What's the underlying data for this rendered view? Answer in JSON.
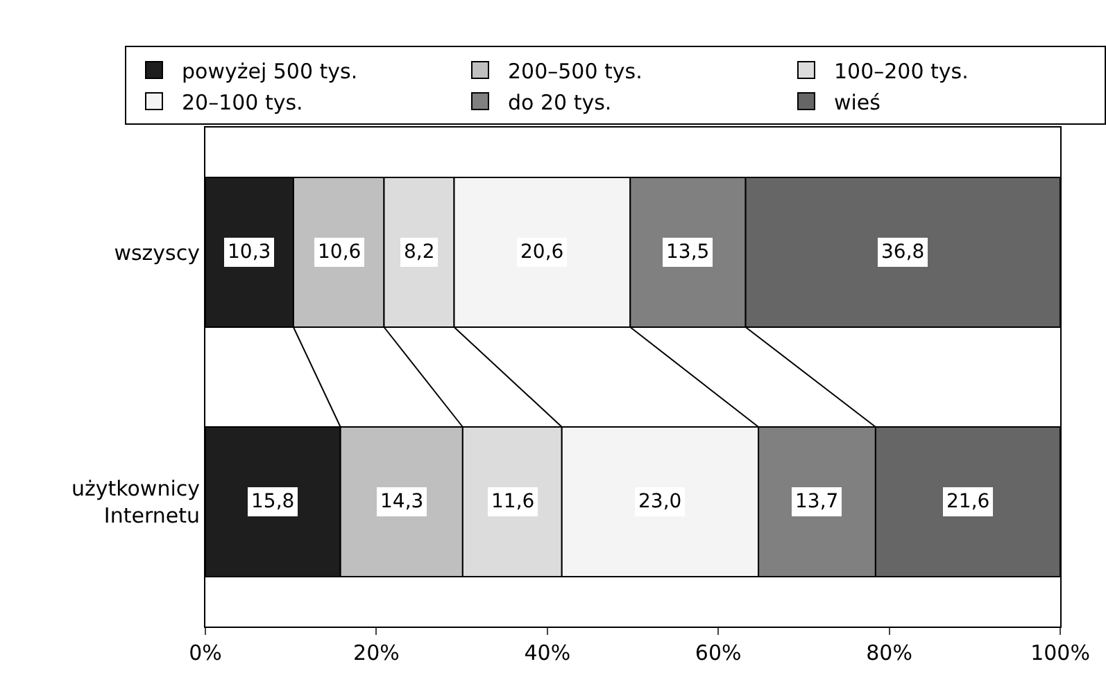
{
  "chart_data": {
    "type": "bar",
    "orientation": "horizontal",
    "stacked": true,
    "categories": [
      "wszyscy",
      "użytkownicy\nInternetu"
    ],
    "series": [
      {
        "name": "powyżej 500 tys.",
        "color": "#1e1e1e",
        "values": [
          10.3,
          15.8
        ],
        "value_labels": [
          "10,3",
          "15,8"
        ]
      },
      {
        "name": "200–500 tys.",
        "color": "#bfbfbf",
        "values": [
          10.6,
          14.3
        ],
        "value_labels": [
          "10,6",
          "14,3"
        ]
      },
      {
        "name": "100–200 tys.",
        "color": "#dcdcdc",
        "values": [
          8.2,
          11.6
        ],
        "value_labels": [
          "8,2",
          "11,6"
        ]
      },
      {
        "name": "20–100 tys.",
        "color": "#f4f4f4",
        "values": [
          20.6,
          23.0
        ],
        "value_labels": [
          "20,6",
          "23,0"
        ]
      },
      {
        "name": "do 20 tys.",
        "color": "#808080",
        "values": [
          13.5,
          13.7
        ],
        "value_labels": [
          "13,5",
          "13,7"
        ]
      },
      {
        "name": "wieś",
        "color": "#666666",
        "values": [
          36.8,
          21.6
        ],
        "value_labels": [
          "36,8",
          "21,6"
        ]
      }
    ],
    "xlim": [
      0,
      100
    ],
    "xticks": [
      {
        "value": 0,
        "label": "0%"
      },
      {
        "value": 20,
        "label": "20%"
      },
      {
        "value": 40,
        "label": "40%"
      },
      {
        "value": 60,
        "label": "60%"
      },
      {
        "value": 80,
        "label": "80%"
      },
      {
        "value": 100,
        "label": "100%"
      }
    ],
    "legend": "top"
  }
}
